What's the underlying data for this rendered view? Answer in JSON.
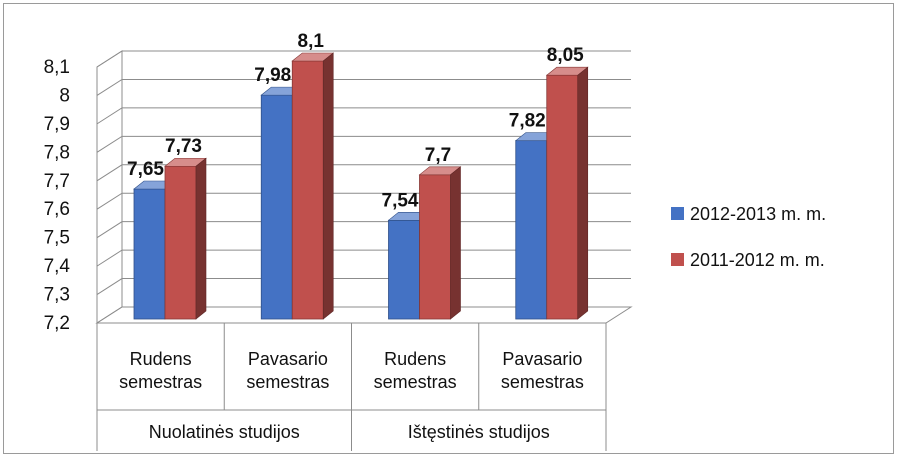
{
  "chart_data": {
    "type": "bar",
    "style": "3d-clustered-column",
    "categories": [
      "Rudens semestras",
      "Pavasario semestras",
      "Rudens semestras",
      "Pavasario semestras"
    ],
    "category_lines": [
      [
        "Rudens",
        "semestras"
      ],
      [
        "Pavasario",
        "semestras"
      ],
      [
        "Rudens",
        "semestras"
      ],
      [
        "Pavasario",
        "semestras"
      ]
    ],
    "groups": [
      {
        "label": "Nuolatinės studijos",
        "categories": [
          0,
          1
        ]
      },
      {
        "label": "Ištęstinės studijos",
        "categories": [
          2,
          3
        ]
      }
    ],
    "series": [
      {
        "name": "2012-2013 m. m.",
        "values": [
          7.65,
          7.98,
          7.54,
          7.82
        ],
        "labels": [
          "7,65",
          "7,98",
          "7,54",
          "7,82"
        ],
        "color": "#4472C4"
      },
      {
        "name": "2011-2012 m. m.",
        "values": [
          7.73,
          8.1,
          7.7,
          8.05
        ],
        "labels": [
          "7,73",
          "8,1",
          "7,7",
          "8,05"
        ],
        "color": "#C0504D"
      }
    ],
    "ylim": [
      7.2,
      8.1
    ],
    "yticks": [
      7.2,
      7.3,
      7.4,
      7.5,
      7.6,
      7.7,
      7.8,
      7.9,
      8.0,
      8.1
    ],
    "ytick_labels": [
      "7,2",
      "7,3",
      "7,4",
      "7,5",
      "7,6",
      "7,7",
      "7,8",
      "7,9",
      "8",
      "8,1"
    ],
    "grid": true,
    "legend_position": "right",
    "title": "",
    "xlabel": "",
    "ylabel": ""
  }
}
